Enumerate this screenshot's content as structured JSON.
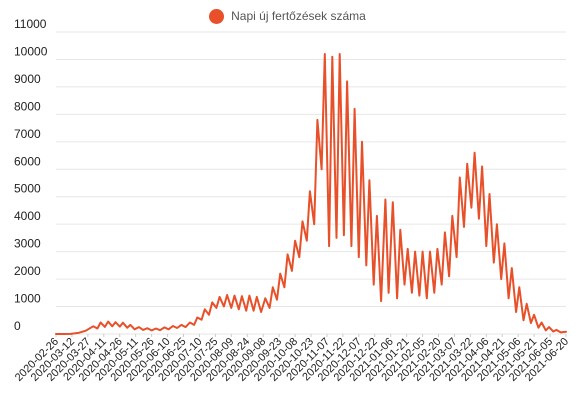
{
  "chart_data": {
    "type": "line",
    "title": "",
    "xlabel": "",
    "ylabel": "",
    "legend": {
      "position": "top-center",
      "entries": [
        "Napi új fertőzések száma"
      ]
    },
    "grid": {
      "horizontal": true,
      "vertical": false
    },
    "colors": {
      "series": "#e8502a",
      "grid": "#e6e6e6",
      "axis_text": "#222222"
    },
    "ylim": [
      0,
      11000
    ],
    "y_ticks": [
      0,
      1000,
      2000,
      3000,
      4000,
      5000,
      6000,
      7000,
      8000,
      9000,
      10000,
      11000
    ],
    "x_tick_labels": [
      "2020-02-26",
      "2020-03-12",
      "2020-03-27",
      "2020-04-11",
      "2020-04-26",
      "2020-05-11",
      "2020-05-26",
      "2020-06-10",
      "2020-06-25",
      "2020-07-10",
      "2020-07-25",
      "2020-08-09",
      "2020-08-24",
      "2020-09-08",
      "2020-09-23",
      "2020-10-08",
      "2020-10-23",
      "2020-11-07",
      "2020-11-22",
      "2020-12-07",
      "2020-12-22",
      "2021-01-06",
      "2021-01-21",
      "2021-02-05",
      "2021-02-20",
      "2021-03-07",
      "2021-03-22",
      "2021-04-06",
      "2021-04-21",
      "2021-05-06",
      "2021-05-21",
      "2021-06-05",
      "2021-06-20"
    ],
    "x_start": "2020-02-26",
    "x_end": "2021-06-20",
    "series": [
      {
        "name": "Napi új fertőzések száma",
        "color": "#e8502a",
        "points": [
          [
            "2020-02-26",
            0
          ],
          [
            "2020-03-04",
            0
          ],
          [
            "2020-03-11",
            5
          ],
          [
            "2020-03-18",
            40
          ],
          [
            "2020-03-25",
            120
          ],
          [
            "2020-04-01",
            280
          ],
          [
            "2020-04-05",
            200
          ],
          [
            "2020-04-08",
            420
          ],
          [
            "2020-04-12",
            260
          ],
          [
            "2020-04-15",
            450
          ],
          [
            "2020-04-19",
            280
          ],
          [
            "2020-04-22",
            430
          ],
          [
            "2020-04-26",
            270
          ],
          [
            "2020-04-29",
            410
          ],
          [
            "2020-05-03",
            230
          ],
          [
            "2020-05-06",
            330
          ],
          [
            "2020-05-10",
            170
          ],
          [
            "2020-05-14",
            250
          ],
          [
            "2020-05-18",
            150
          ],
          [
            "2020-05-22",
            210
          ],
          [
            "2020-05-26",
            130
          ],
          [
            "2020-05-30",
            200
          ],
          [
            "2020-06-03",
            140
          ],
          [
            "2020-06-07",
            240
          ],
          [
            "2020-06-11",
            170
          ],
          [
            "2020-06-15",
            290
          ],
          [
            "2020-06-19",
            220
          ],
          [
            "2020-06-23",
            330
          ],
          [
            "2020-06-27",
            250
          ],
          [
            "2020-07-01",
            420
          ],
          [
            "2020-07-05",
            330
          ],
          [
            "2020-07-08",
            600
          ],
          [
            "2020-07-12",
            520
          ],
          [
            "2020-07-15",
            900
          ],
          [
            "2020-07-19",
            700
          ],
          [
            "2020-07-22",
            1150
          ],
          [
            "2020-07-26",
            950
          ],
          [
            "2020-07-29",
            1350
          ],
          [
            "2020-08-02",
            1000
          ],
          [
            "2020-08-05",
            1420
          ],
          [
            "2020-08-09",
            950
          ],
          [
            "2020-08-12",
            1400
          ],
          [
            "2020-08-16",
            900
          ],
          [
            "2020-08-19",
            1380
          ],
          [
            "2020-08-23",
            850
          ],
          [
            "2020-08-26",
            1400
          ],
          [
            "2020-08-30",
            850
          ],
          [
            "2020-09-02",
            1350
          ],
          [
            "2020-09-06",
            800
          ],
          [
            "2020-09-10",
            1300
          ],
          [
            "2020-09-14",
            950
          ],
          [
            "2020-09-17",
            1700
          ],
          [
            "2020-09-21",
            1250
          ],
          [
            "2020-09-24",
            2200
          ],
          [
            "2020-09-28",
            1700
          ],
          [
            "2020-10-01",
            2900
          ],
          [
            "2020-10-05",
            2300
          ],
          [
            "2020-10-08",
            3400
          ],
          [
            "2020-10-12",
            2800
          ],
          [
            "2020-10-15",
            4100
          ],
          [
            "2020-10-19",
            3400
          ],
          [
            "2020-10-22",
            5200
          ],
          [
            "2020-10-26",
            4000
          ],
          [
            "2020-10-29",
            7800
          ],
          [
            "2020-11-02",
            6000
          ],
          [
            "2020-11-05",
            10200
          ],
          [
            "2020-11-09",
            3200
          ],
          [
            "2020-11-12",
            10100
          ],
          [
            "2020-11-16",
            3500
          ],
          [
            "2020-11-19",
            10200
          ],
          [
            "2020-11-23",
            3600
          ],
          [
            "2020-11-26",
            9200
          ],
          [
            "2020-11-30",
            3200
          ],
          [
            "2020-12-03",
            8200
          ],
          [
            "2020-12-07",
            2800
          ],
          [
            "2020-12-10",
            7000
          ],
          [
            "2020-12-14",
            2500
          ],
          [
            "2020-12-17",
            5600
          ],
          [
            "2020-12-21",
            1800
          ],
          [
            "2020-12-24",
            4300
          ],
          [
            "2020-12-28",
            1200
          ],
          [
            "2021-01-01",
            4900
          ],
          [
            "2021-01-04",
            1500
          ],
          [
            "2021-01-08",
            4800
          ],
          [
            "2021-01-12",
            1300
          ],
          [
            "2021-01-15",
            3800
          ],
          [
            "2021-01-19",
            1800
          ],
          [
            "2021-01-22",
            3100
          ],
          [
            "2021-01-26",
            1500
          ],
          [
            "2021-01-29",
            3000
          ],
          [
            "2021-02-02",
            1400
          ],
          [
            "2021-02-05",
            3000
          ],
          [
            "2021-02-09",
            1300
          ],
          [
            "2021-02-12",
            3000
          ],
          [
            "2021-02-16",
            1500
          ],
          [
            "2021-02-19",
            3100
          ],
          [
            "2021-02-23",
            1800
          ],
          [
            "2021-02-26",
            3700
          ],
          [
            "2021-03-02",
            2100
          ],
          [
            "2021-03-05",
            4300
          ],
          [
            "2021-03-09",
            2800
          ],
          [
            "2021-03-12",
            5700
          ],
          [
            "2021-03-16",
            3900
          ],
          [
            "2021-03-19",
            6200
          ],
          [
            "2021-03-23",
            4600
          ],
          [
            "2021-03-26",
            6600
          ],
          [
            "2021-03-30",
            4200
          ],
          [
            "2021-04-02",
            6100
          ],
          [
            "2021-04-06",
            3200
          ],
          [
            "2021-04-09",
            5100
          ],
          [
            "2021-04-13",
            2600
          ],
          [
            "2021-04-16",
            4000
          ],
          [
            "2021-04-20",
            2000
          ],
          [
            "2021-04-23",
            3300
          ],
          [
            "2021-04-27",
            1300
          ],
          [
            "2021-04-30",
            2400
          ],
          [
            "2021-05-04",
            800
          ],
          [
            "2021-05-07",
            1700
          ],
          [
            "2021-05-11",
            500
          ],
          [
            "2021-05-14",
            1100
          ],
          [
            "2021-05-18",
            400
          ],
          [
            "2021-05-21",
            700
          ],
          [
            "2021-05-25",
            230
          ],
          [
            "2021-05-28",
            420
          ],
          [
            "2021-06-01",
            130
          ],
          [
            "2021-06-04",
            250
          ],
          [
            "2021-06-08",
            90
          ],
          [
            "2021-06-11",
            150
          ],
          [
            "2021-06-15",
            60
          ],
          [
            "2021-06-20",
            80
          ]
        ]
      }
    ]
  }
}
